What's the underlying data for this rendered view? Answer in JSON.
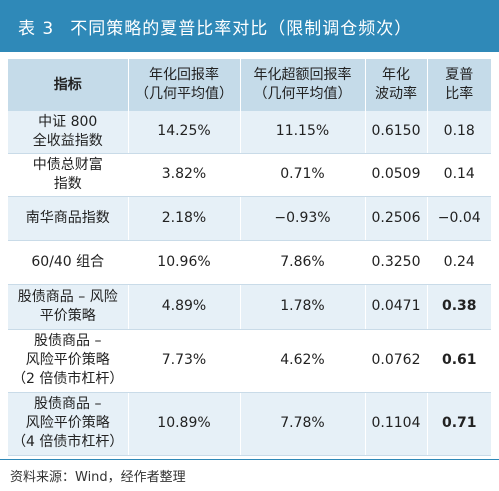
{
  "title": {
    "number": "表 3",
    "text": "不同策略的夏普比率对比（限制调仓频次）"
  },
  "table": {
    "headers": [
      "指标",
      "年化回报率\n（几何平均值）",
      "年化超额回报率\n（几何平均值）",
      "年化\n波动率",
      "夏普\n比率"
    ],
    "rows": [
      {
        "name": "中证 800\n全收益指数",
        "return": "14.25%",
        "excess": "11.15%",
        "vol": "0.6150",
        "sharpe": "0.18",
        "bold": false
      },
      {
        "name": "中债总财富\n指数",
        "return": "3.82%",
        "excess": "0.71%",
        "vol": "0.0509",
        "sharpe": "0.14",
        "bold": false
      },
      {
        "name": "南华商品指数",
        "return": "2.18%",
        "excess": "−0.93%",
        "vol": "0.2506",
        "sharpe": "−0.04",
        "bold": false
      },
      {
        "name": "60/40 组合",
        "return": "10.96%",
        "excess": "7.86%",
        "vol": "0.3250",
        "sharpe": "0.24",
        "bold": false
      },
      {
        "name": "股债商品 – 风险\n平价策略",
        "return": "4.89%",
        "excess": "1.78%",
        "vol": "0.0471",
        "sharpe": "0.38",
        "bold": true
      },
      {
        "name": "股债商品 –\n风险平价策略\n（2 倍债市杠杆）",
        "return": "7.73%",
        "excess": "4.62%",
        "vol": "0.0762",
        "sharpe": "0.61",
        "bold": true
      },
      {
        "name": "股债商品 –\n风险平价策略\n（4 倍债市杠杆）",
        "return": "10.89%",
        "excess": "7.78%",
        "vol": "0.1104",
        "sharpe": "0.71",
        "bold": true
      }
    ]
  },
  "source": "资料来源：Wind，经作者整理"
}
